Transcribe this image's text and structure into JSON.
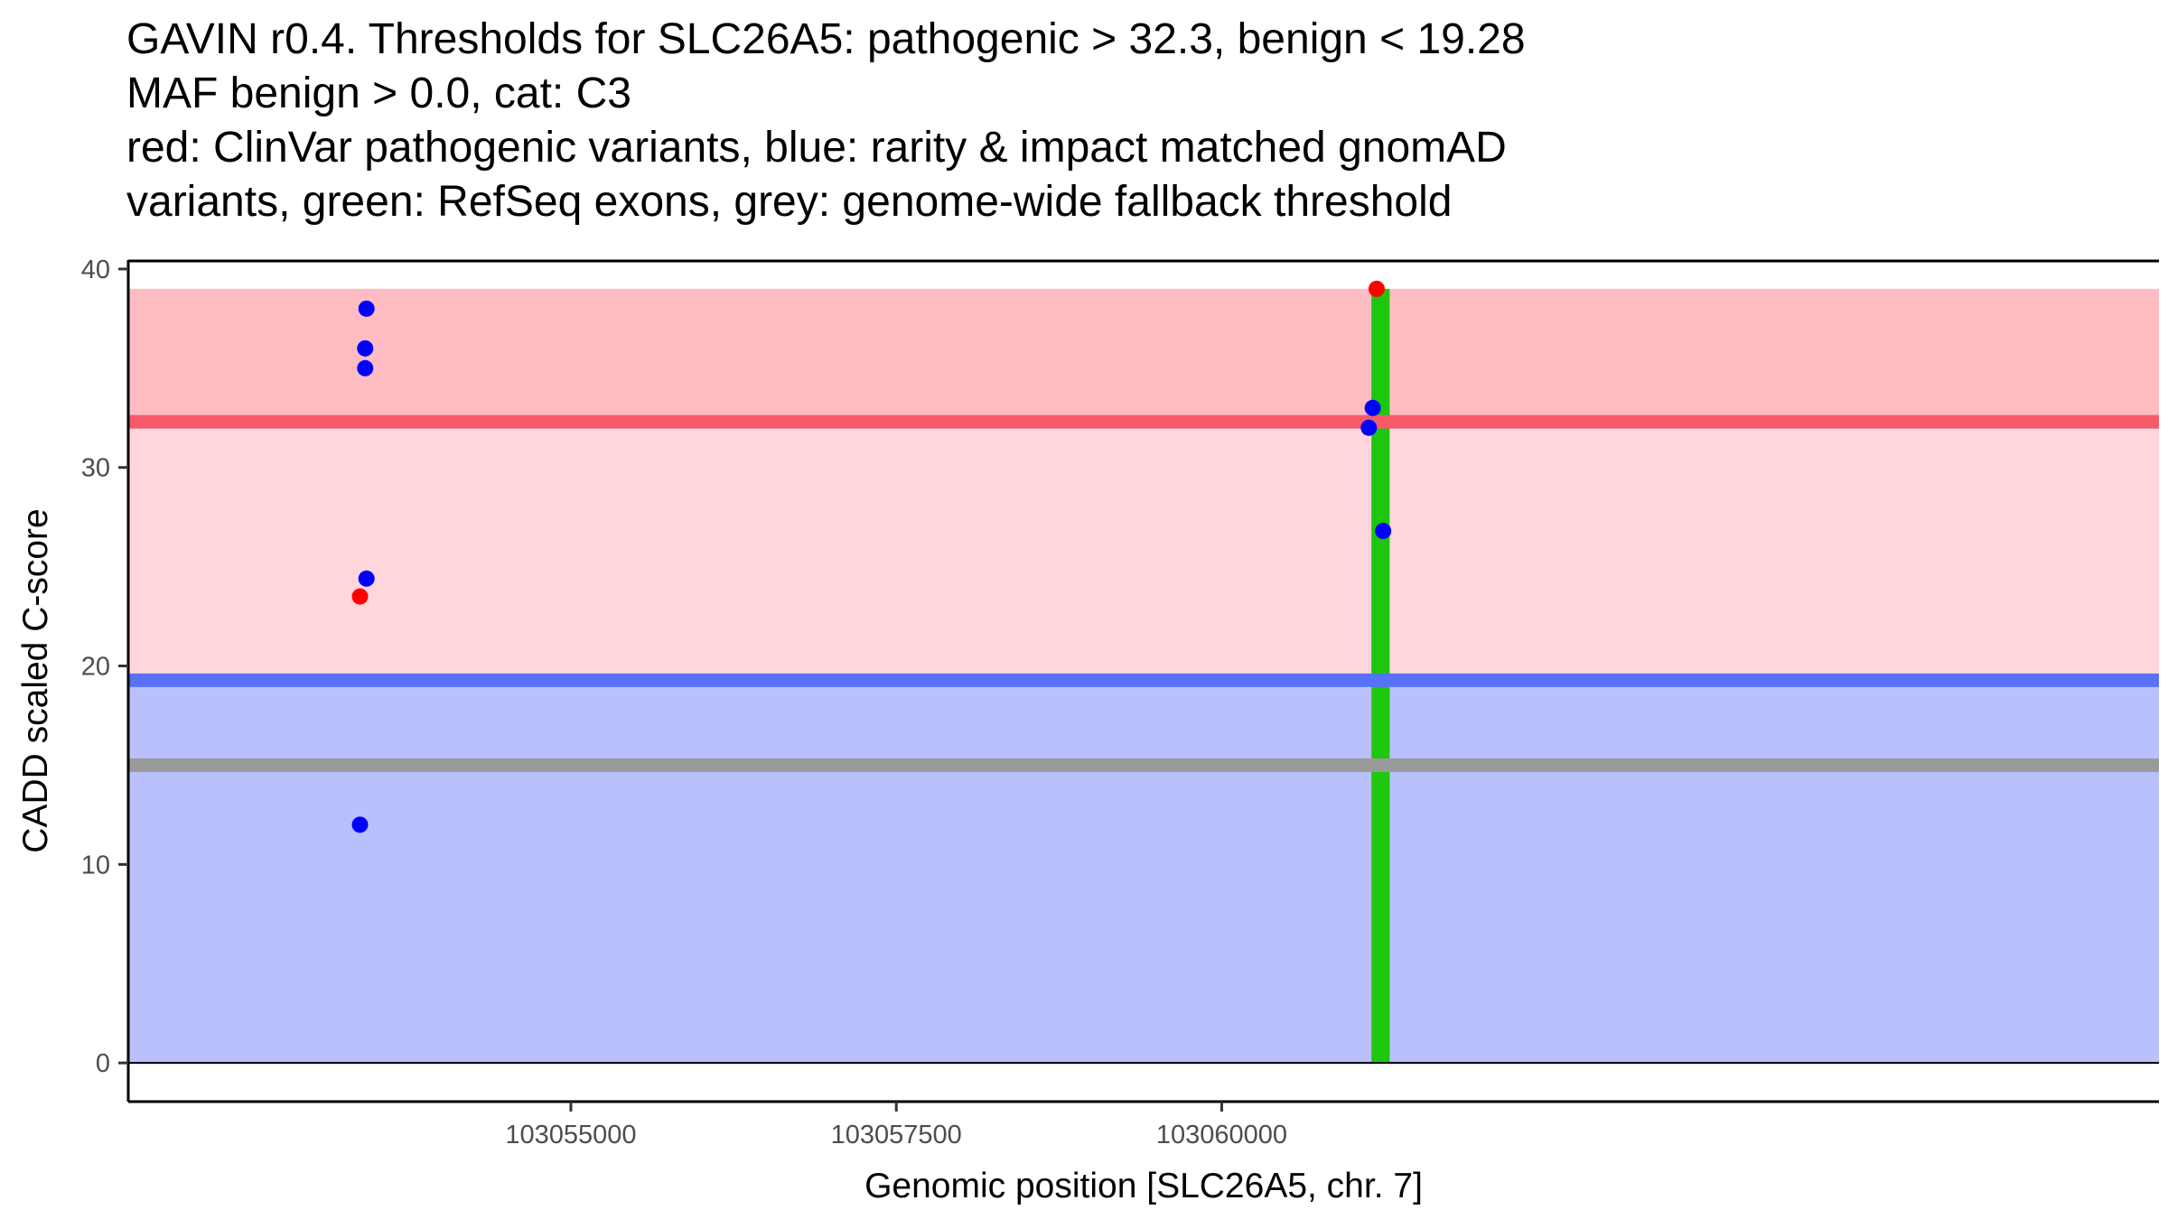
{
  "chart_data": {
    "type": "scatter",
    "title_lines": [
      "GAVIN r0.4. Thresholds for SLC26A5: pathogenic > 32.3, benign < 19.28",
      "MAF benign > 0.0, cat: C3",
      "red: ClinVar pathogenic variants, blue: rarity & impact matched gnomAD",
      "variants, green: RefSeq exons, grey: genome-wide fallback threshold"
    ],
    "xlabel": "Genomic position [SLC26A5, chr. 7]",
    "ylabel": "CADD scaled C-score",
    "xlim": [
      103051600,
      103067200
    ],
    "ylim": [
      -1.95,
      40.45
    ],
    "x_ticks": [
      103055000,
      103057500,
      103060000
    ],
    "x_tick_labels": [
      "103055000",
      "103057500",
      "103060000"
    ],
    "y_ticks": [
      0,
      10,
      20,
      30,
      40
    ],
    "y_tick_labels": [
      "0",
      "10",
      "20",
      "30",
      "40"
    ],
    "thresholds": {
      "pathogenic": 32.3,
      "benign": 19.28,
      "fallback": 15,
      "max_score": 39
    },
    "bands": [
      {
        "name": "benign-band",
        "from": 0,
        "to": 19.28,
        "color": "#b9c0fb"
      },
      {
        "name": "intermediate-band",
        "from": 19.28,
        "to": 32.3,
        "color": "#ffd6dc"
      },
      {
        "name": "pathogenic-band",
        "from": 32.3,
        "to": 39,
        "color": "#ffbdc3"
      }
    ],
    "threshold_lines": [
      {
        "name": "pathogenic-threshold-line",
        "y": 32.3,
        "color": "#f55a68"
      },
      {
        "name": "benign-threshold-line",
        "y": 19.28,
        "color": "#5771f7"
      },
      {
        "name": "fallback-threshold-line",
        "y": 15,
        "color": "#9a9a9a"
      }
    ],
    "exons": [
      {
        "start": 103061150,
        "end": 103061290,
        "color": "#1ec60d"
      }
    ],
    "series": [
      {
        "name": "ClinVar pathogenic variants",
        "color": "#ff0000",
        "points": [
          {
            "x": 103053380,
            "y": 23.5
          },
          {
            "x": 103061190,
            "y": 39
          }
        ]
      },
      {
        "name": "rarity & impact matched gnomAD variants",
        "color": "#0000ff",
        "points": [
          {
            "x": 103053430,
            "y": 38
          },
          {
            "x": 103053420,
            "y": 36
          },
          {
            "x": 103053420,
            "y": 35
          },
          {
            "x": 103053430,
            "y": 24.4
          },
          {
            "x": 103053380,
            "y": 12
          },
          {
            "x": 103061160,
            "y": 33
          },
          {
            "x": 103061130,
            "y": 32
          },
          {
            "x": 103061240,
            "y": 26.8
          }
        ]
      }
    ]
  }
}
